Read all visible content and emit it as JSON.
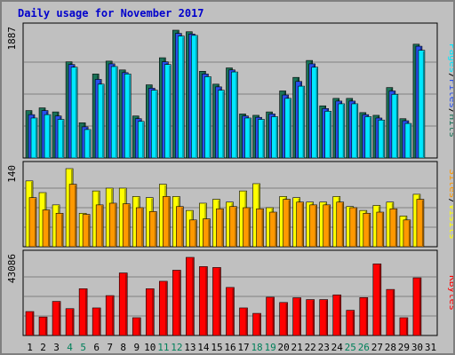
{
  "chart_data": {
    "title": "Daily usage for November 2017",
    "days": [
      1,
      2,
      3,
      4,
      5,
      6,
      7,
      8,
      9,
      10,
      11,
      12,
      13,
      14,
      15,
      16,
      17,
      18,
      19,
      20,
      21,
      22,
      23,
      24,
      25,
      26,
      27,
      28,
      29,
      30,
      31
    ],
    "weekend_days": [
      4,
      5,
      11,
      12,
      18,
      19,
      25,
      26
    ],
    "colors": {
      "hits": "#1a7358",
      "files": "#2850ee",
      "pages": "#00e8ff",
      "visits": "#ffff00",
      "sites": "#ff9900",
      "kbytes": "#ff0000",
      "weekday_label": "#000000",
      "weekend_label": "#00805a"
    },
    "panels": [
      {
        "type": "bar",
        "ymax_label": "1887",
        "ymax": 1887,
        "series": [
          {
            "name": "Hits",
            "key": "hits",
            "values": [
              700,
              740,
              680,
              1420,
              520,
              1240,
              1430,
              1300,
              620,
              1080,
              1480,
              1887,
              1864,
              1280,
              1090,
              1330,
              650,
              630,
              680,
              990,
              1190,
              1440,
              770,
              880,
              880,
              670,
              630,
              1040,
              580,
              1680
            ]
          },
          {
            "name": "Files",
            "key": "files",
            "values": [
              640,
              700,
              620,
              1380,
              460,
              1160,
              1390,
              1260,
              580,
              1030,
              1420,
              1840,
              1830,
              1240,
              1050,
              1300,
              620,
              600,
              650,
              930,
              1130,
              1390,
              730,
              840,
              840,
              640,
              590,
              990,
              550,
              1650
            ]
          },
          {
            "name": "Pages",
            "key": "pages",
            "values": [
              590,
              640,
              570,
              1340,
              420,
              1090,
              1350,
              1240,
              540,
              1000,
              1380,
              1800,
              1810,
              1200,
              1000,
              1270,
              590,
              570,
              610,
              880,
              1060,
              1340,
              690,
              800,
              800,
              610,
              560,
              940,
              510,
              1590
            ]
          }
        ],
        "label_separators": [
          "/",
          "/"
        ]
      },
      {
        "type": "bar",
        "ymax_label": "140",
        "ymax": 140,
        "series": [
          {
            "name": "Visits",
            "key": "visits",
            "values": [
              118,
              97,
              75,
              140,
              60,
              100,
              105,
              105,
              90,
              88,
              112,
              90,
              65,
              78,
              85,
              80,
              100,
              113,
              70,
              90,
              88,
              80,
              80,
              90,
              72,
              65,
              74,
              80,
              55,
              94
            ]
          },
          {
            "name": "Sites",
            "key": "sites",
            "values": [
              88,
              66,
              60,
              112,
              58,
              75,
              78,
              77,
              70,
              63,
              90,
              72,
              48,
              50,
              68,
              72,
              70,
              68,
              62,
              85,
              80,
              75,
              75,
              80,
              70,
              60,
              62,
              68,
              48,
              85
            ]
          }
        ],
        "label_separators": [
          "/"
        ]
      },
      {
        "type": "bar",
        "ymax_label": "43086",
        "ymax": 43086,
        "series": [
          {
            "name": "KBytes",
            "key": "kbytes",
            "values": [
              13200,
              10200,
              18800,
              14800,
              25800,
              15200,
              22000,
              34500,
              9800,
              25800,
              29900,
              36000,
              43086,
              38000,
              37500,
              26500,
              15200,
              12200,
              21100,
              18200,
              20800,
              19800,
              19800,
              22400,
              13900,
              20900,
              39500,
              25400,
              9800,
              31800
            ]
          }
        ],
        "label_separators": []
      }
    ]
  }
}
